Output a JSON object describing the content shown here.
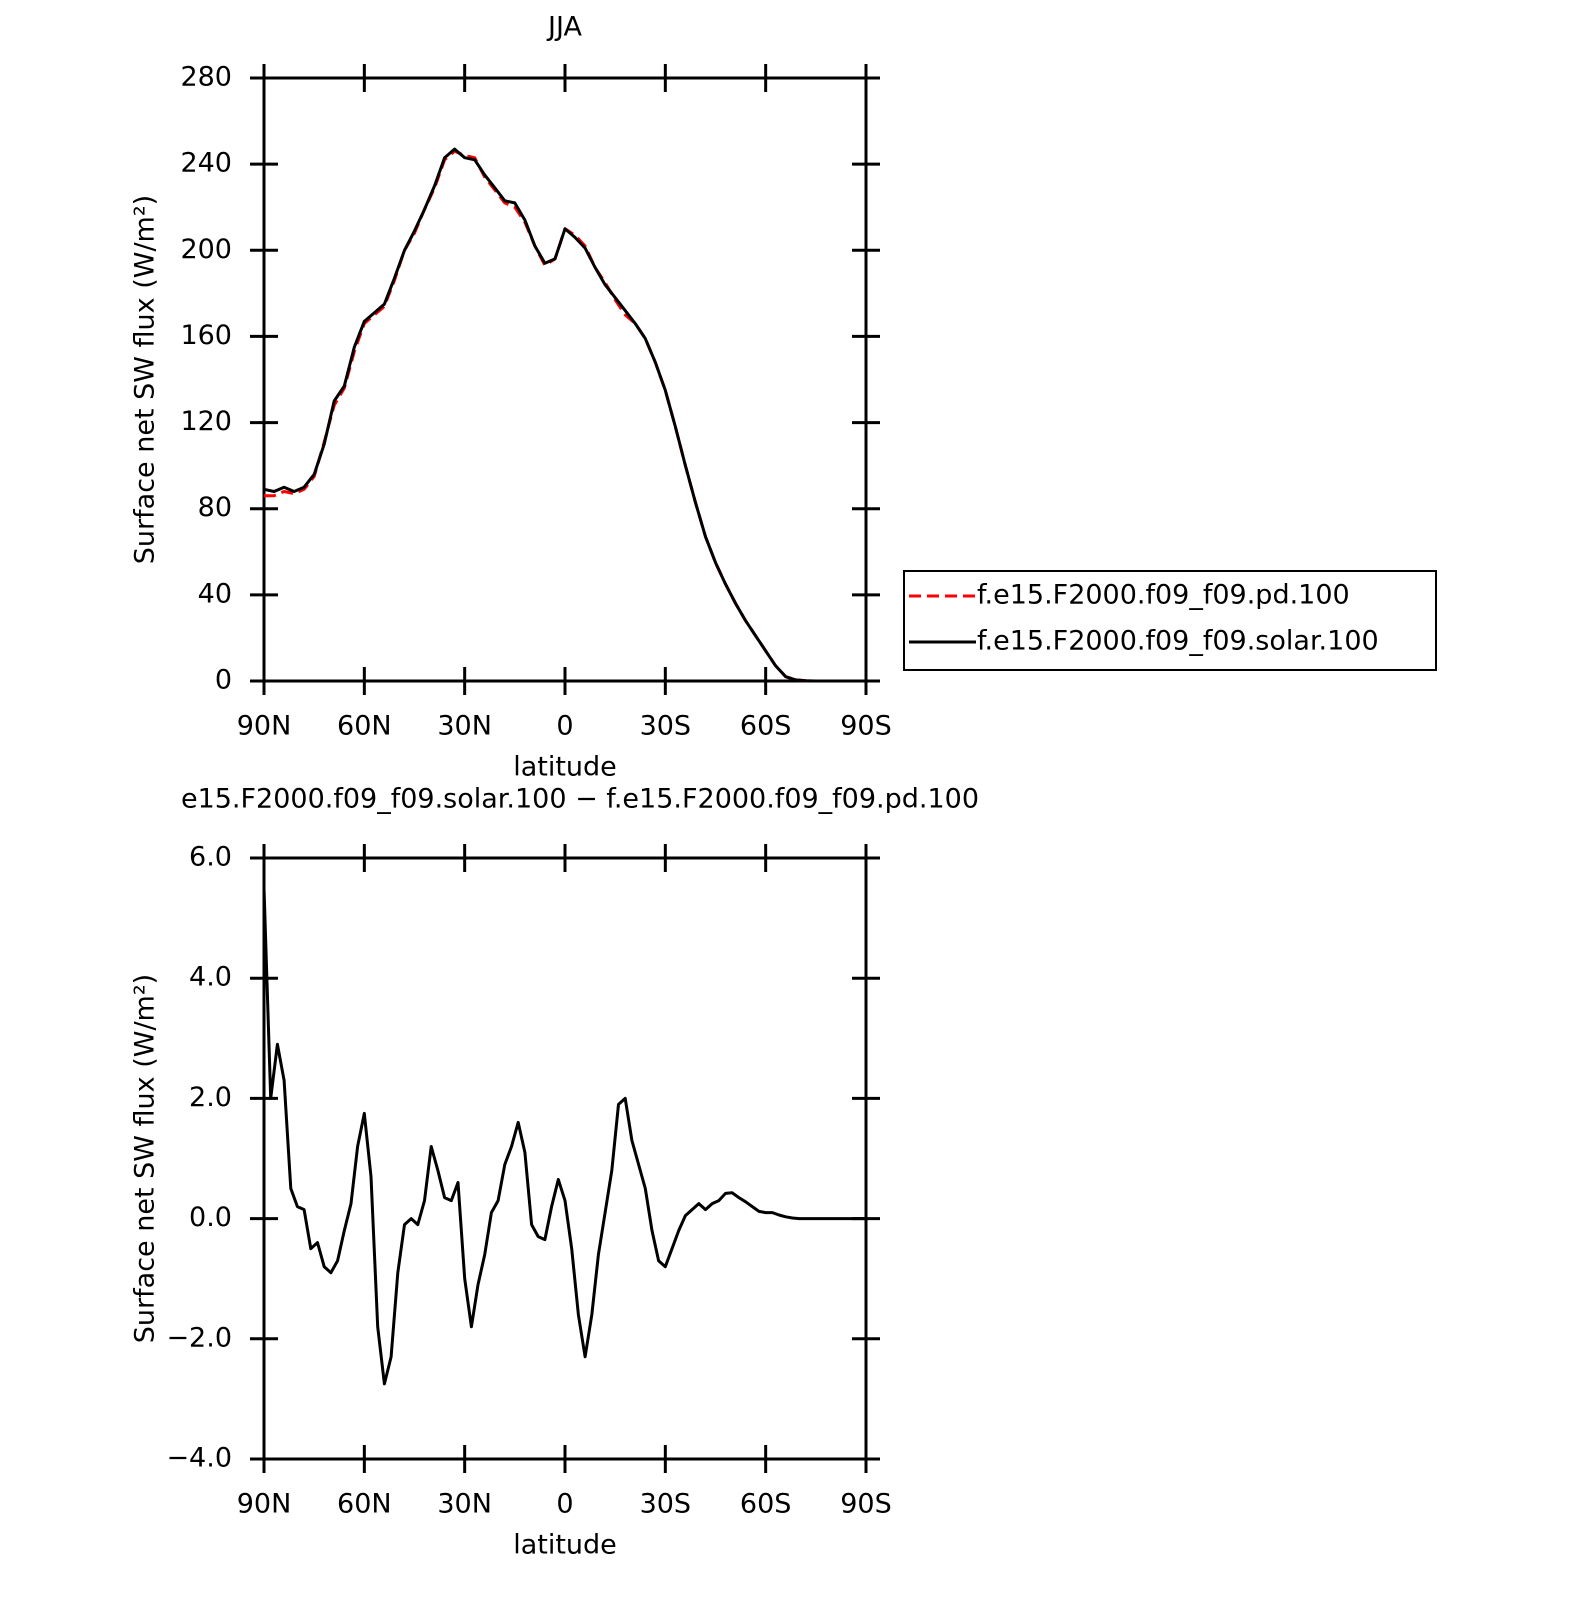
{
  "chart_data": [
    {
      "type": "line",
      "title": "JJA",
      "xlabel": "latitude",
      "ylabel": "Surface net SW flux (W/m²)",
      "x": [
        90,
        87,
        84,
        81,
        78,
        75,
        72,
        69,
        66,
        63,
        60,
        57,
        54,
        51,
        48,
        45,
        42,
        39,
        36,
        33,
        30,
        27,
        24,
        21,
        18,
        15,
        12,
        9,
        6,
        3,
        0,
        -3,
        -6,
        -9,
        -12,
        -15,
        -18,
        -21,
        -24,
        -27,
        -30,
        -33,
        -36,
        -39,
        -42,
        -45,
        -48,
        -51,
        -54,
        -57,
        -60,
        -63,
        -66,
        -69,
        -72,
        -75,
        -78,
        -81,
        -84,
        -87,
        -90
      ],
      "series": [
        {
          "name": "f.e15.F2000.f09_f09.pd.100",
          "color": "#ff0000",
          "line_style": "dashed",
          "values": [
            86,
            86,
            88,
            87,
            89,
            95,
            111,
            128,
            136,
            153,
            166,
            170,
            174,
            186,
            200,
            208,
            219,
            229,
            242,
            246,
            244,
            243,
            234,
            228,
            222,
            220,
            213,
            202,
            193,
            196,
            210,
            207,
            202,
            192,
            185,
            177,
            170,
            166,
            159,
            148,
            135,
            118,
            100,
            83,
            67,
            55,
            45,
            36,
            28,
            21,
            14,
            7,
            2,
            0.5,
            0.1,
            0,
            0,
            0,
            0,
            0,
            0
          ]
        },
        {
          "name": "f.e15.F2000.f09_f09.solar.100",
          "color": "#000000",
          "line_style": "solid",
          "values": [
            89,
            88,
            90,
            88,
            90,
            96,
            110,
            130,
            137,
            155,
            167,
            171,
            175,
            187,
            200,
            209,
            219,
            230,
            243,
            247,
            243,
            242,
            235,
            229,
            223,
            222,
            214,
            202,
            194,
            196,
            210,
            206,
            201,
            192,
            184,
            178,
            172,
            166,
            159,
            148,
            135,
            118,
            100,
            83,
            67,
            55,
            45,
            36,
            28,
            21,
            14,
            7,
            2,
            0.5,
            0.1,
            0,
            0,
            0,
            0,
            0,
            0
          ]
        }
      ],
      "xlim": [
        90,
        -90
      ],
      "xticks": [
        {
          "value": 90,
          "label": "90N"
        },
        {
          "value": 60,
          "label": "60N"
        },
        {
          "value": 30,
          "label": "30N"
        },
        0,
        {
          "value": -30,
          "label": "30S"
        },
        {
          "value": -60,
          "label": "60S"
        },
        {
          "value": -90,
          "label": "90S"
        }
      ],
      "ylim": [
        0,
        280
      ],
      "yticks": [
        0,
        40,
        80,
        120,
        160,
        200,
        240,
        280
      ],
      "legend": "outside-right"
    },
    {
      "type": "line",
      "title": "e15.F2000.f09_f09.solar.100 − f.e15.F2000.f09_f09.pd.100",
      "xlabel": "latitude",
      "ylabel": "Surface net SW flux (W/m²)",
      "x": [
        90,
        88,
        86,
        84,
        82,
        80,
        78,
        76,
        74,
        72,
        70,
        68,
        66,
        64,
        62,
        60,
        58,
        56,
        54,
        52,
        50,
        48,
        46,
        44,
        42,
        40,
        38,
        36,
        34,
        32,
        30,
        28,
        26,
        24,
        22,
        20,
        18,
        16,
        14,
        12,
        10,
        8,
        6,
        4,
        2,
        0,
        -2,
        -4,
        -6,
        -8,
        -10,
        -12,
        -14,
        -16,
        -18,
        -20,
        -22,
        -24,
        -26,
        -28,
        -30,
        -32,
        -34,
        -36,
        -38,
        -40,
        -42,
        -44,
        -46,
        -48,
        -50,
        -52,
        -54,
        -56,
        -58,
        -60,
        -62,
        -64,
        -66,
        -68,
        -70,
        -72,
        -74,
        -76,
        -78,
        -80,
        -82,
        -84,
        -86,
        -88,
        -90
      ],
      "series": [
        {
          "color": "#000000",
          "line_style": "solid",
          "values": [
            5.5,
            2.0,
            2.9,
            2.3,
            0.5,
            0.2,
            0.15,
            -0.5,
            -0.4,
            -0.8,
            -0.9,
            -0.7,
            -0.2,
            0.25,
            1.2,
            1.75,
            0.7,
            -1.8,
            -2.75,
            -2.3,
            -0.9,
            -0.1,
            0.0,
            -0.1,
            0.3,
            1.2,
            0.8,
            0.35,
            0.3,
            0.6,
            -1.0,
            -1.8,
            -1.1,
            -0.6,
            0.1,
            0.3,
            0.9,
            1.2,
            1.6,
            1.1,
            -0.1,
            -0.3,
            -0.35,
            0.2,
            0.65,
            0.3,
            -0.5,
            -1.6,
            -2.3,
            -1.6,
            -0.6,
            0.1,
            0.8,
            1.9,
            2.0,
            1.3,
            0.9,
            0.5,
            -0.2,
            -0.7,
            -0.8,
            -0.5,
            -0.2,
            0.05,
            0.15,
            0.25,
            0.15,
            0.25,
            0.3,
            0.42,
            0.43,
            0.35,
            0.28,
            0.2,
            0.12,
            0.1,
            0.1,
            0.06,
            0.03,
            0.01,
            0,
            0,
            0,
            0,
            0,
            0,
            0,
            0,
            0,
            0,
            0
          ]
        }
      ],
      "xlim": [
        90,
        -90
      ],
      "xticks": [
        {
          "value": 90,
          "label": "90N"
        },
        {
          "value": 60,
          "label": "60N"
        },
        {
          "value": 30,
          "label": "30N"
        },
        0,
        {
          "value": -30,
          "label": "30S"
        },
        {
          "value": -60,
          "label": "60S"
        },
        {
          "value": -90,
          "label": "90S"
        }
      ],
      "ylim": [
        -4,
        6
      ],
      "yticks": [
        {
          "value": -4,
          "label": "−4.0"
        },
        {
          "value": -2,
          "label": "−2.0"
        },
        {
          "value": 0,
          "label": "0.0"
        },
        {
          "value": 2,
          "label": "2.0"
        },
        {
          "value": 4,
          "label": "4.0"
        },
        {
          "value": 6,
          "label": "6.0"
        }
      ]
    }
  ]
}
